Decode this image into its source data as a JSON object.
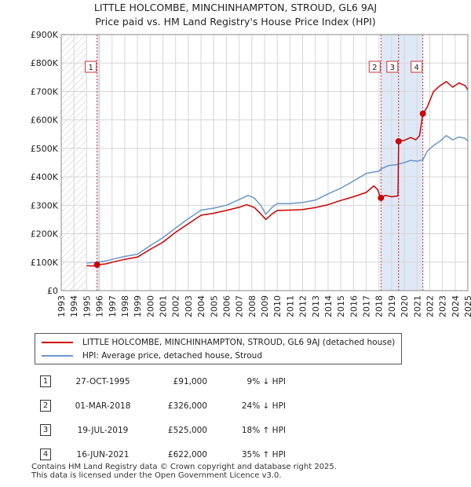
{
  "title_line1": "LITTLE HOLCOMBE, MINCHINHAMPTON, STROUD, GL6 9AJ",
  "title_line2": "Price paid vs. HM Land Registry's House Price Index (HPI)",
  "chart_data": {
    "type": "line",
    "title": "LITTLE HOLCOMBE, MINCHINHAMPTON, STROUD, GL6 9AJ — Price paid vs. HM Land Registry's House Price Index (HPI)",
    "xlabel": "",
    "ylabel": "",
    "xlim": [
      1993,
      2025
    ],
    "ylim": [
      0,
      900000
    ],
    "x_ticks": [
      "1993",
      "1994",
      "1995",
      "1996",
      "1997",
      "1998",
      "1999",
      "2000",
      "2001",
      "2002",
      "2003",
      "2004",
      "2005",
      "2006",
      "2007",
      "2008",
      "2009",
      "2010",
      "2011",
      "2012",
      "2013",
      "2014",
      "2015",
      "2016",
      "2017",
      "2018",
      "2019",
      "2020",
      "2021",
      "2022",
      "2023",
      "2024",
      "2025"
    ],
    "y_ticks": [
      {
        "value": 0,
        "label": "£0"
      },
      {
        "value": 100000,
        "label": "£100K"
      },
      {
        "value": 200000,
        "label": "£200K"
      },
      {
        "value": 300000,
        "label": "£300K"
      },
      {
        "value": 400000,
        "label": "£400K"
      },
      {
        "value": 500000,
        "label": "£500K"
      },
      {
        "value": 600000,
        "label": "£600K"
      },
      {
        "value": 700000,
        "label": "£700K"
      },
      {
        "value": 800000,
        "label": "£800K"
      },
      {
        "value": 900000,
        "label": "£900K"
      }
    ],
    "grid": true,
    "hatch_before_year": 1995.0,
    "colors": {
      "property": "#cc0000",
      "hpi": "#6a97c8",
      "marker_line": "#cc3333",
      "shade": "#dfe8f6"
    },
    "series": [
      {
        "name": "LITTLE HOLCOMBE, MINCHINHAMPTON, STROUD, GL6 9AJ (detached house)",
        "color": "#cc0000",
        "points": [
          [
            1995.0,
            88000
          ],
          [
            1995.5,
            86000
          ],
          [
            1995.82,
            91000
          ],
          [
            1996.5,
            94000
          ],
          [
            1997,
            100000
          ],
          [
            1998,
            110000
          ],
          [
            1999,
            118000
          ],
          [
            2000,
            145000
          ],
          [
            2001,
            170000
          ],
          [
            2002,
            205000
          ],
          [
            2003,
            235000
          ],
          [
            2004,
            265000
          ],
          [
            2005,
            272000
          ],
          [
            2006,
            282000
          ],
          [
            2007,
            293000
          ],
          [
            2007.6,
            302000
          ],
          [
            2008.2,
            292000
          ],
          [
            2008.7,
            270000
          ],
          [
            2009.1,
            250000
          ],
          [
            2009.6,
            270000
          ],
          [
            2010,
            282000
          ],
          [
            2011,
            283000
          ],
          [
            2012,
            285000
          ],
          [
            2013,
            292000
          ],
          [
            2014,
            302000
          ],
          [
            2015,
            317000
          ],
          [
            2016,
            330000
          ],
          [
            2017,
            345000
          ],
          [
            2017.6,
            368000
          ],
          [
            2017.9,
            355000
          ],
          [
            2018.1,
            330000
          ],
          [
            2018.16,
            326000
          ],
          [
            2018.5,
            335000
          ],
          [
            2019.0,
            330000
          ],
          [
            2019.5,
            333000
          ],
          [
            2019.55,
            525000
          ],
          [
            2020.0,
            528000
          ],
          [
            2020.5,
            538000
          ],
          [
            2020.9,
            530000
          ],
          [
            2021.2,
            545000
          ],
          [
            2021.46,
            622000
          ],
          [
            2021.8,
            645000
          ],
          [
            2022.3,
            700000
          ],
          [
            2022.8,
            720000
          ],
          [
            2023.3,
            735000
          ],
          [
            2023.8,
            715000
          ],
          [
            2024.3,
            730000
          ],
          [
            2024.8,
            720000
          ],
          [
            2025,
            705000
          ]
        ]
      },
      {
        "name": "HPI: Average price, detached house, Stroud",
        "color": "#6a97c8",
        "points": [
          [
            1995.0,
            97000
          ],
          [
            1995.82,
            100000
          ],
          [
            1996.5,
            104000
          ],
          [
            1997,
            110000
          ],
          [
            1998,
            120000
          ],
          [
            1999,
            128000
          ],
          [
            2000,
            158000
          ],
          [
            2001,
            186000
          ],
          [
            2002,
            220000
          ],
          [
            2003,
            253000
          ],
          [
            2004,
            283000
          ],
          [
            2005,
            290000
          ],
          [
            2006,
            300000
          ],
          [
            2007,
            320000
          ],
          [
            2007.7,
            335000
          ],
          [
            2008.2,
            325000
          ],
          [
            2008.7,
            300000
          ],
          [
            2009.1,
            268000
          ],
          [
            2009.6,
            293000
          ],
          [
            2010,
            306000
          ],
          [
            2011,
            306000
          ],
          [
            2012,
            310000
          ],
          [
            2013,
            318000
          ],
          [
            2014,
            340000
          ],
          [
            2015,
            360000
          ],
          [
            2016,
            385000
          ],
          [
            2017,
            412000
          ],
          [
            2018,
            420000
          ],
          [
            2018.16,
            428000
          ],
          [
            2018.8,
            440000
          ],
          [
            2019.3,
            442000
          ],
          [
            2019.55,
            445000
          ],
          [
            2020,
            450000
          ],
          [
            2020.5,
            458000
          ],
          [
            2021,
            455000
          ],
          [
            2021.46,
            460000
          ],
          [
            2021.8,
            490000
          ],
          [
            2022.3,
            510000
          ],
          [
            2022.8,
            525000
          ],
          [
            2023.3,
            545000
          ],
          [
            2023.8,
            530000
          ],
          [
            2024.3,
            540000
          ],
          [
            2024.8,
            535000
          ],
          [
            2025,
            525000
          ]
        ]
      }
    ],
    "sale_markers": [
      {
        "id": "1",
        "year": 1995.82,
        "value": 91000
      },
      {
        "id": "2",
        "year": 2018.16,
        "value": 326000
      },
      {
        "id": "3",
        "year": 2019.55,
        "value": 525000
      },
      {
        "id": "4",
        "year": 2021.46,
        "value": 622000
      }
    ]
  },
  "legend": {
    "property_label": "LITTLE HOLCOMBE, MINCHINHAMPTON, STROUD, GL6 9AJ (detached house)",
    "hpi_label": "HPI: Average price, detached house, Stroud"
  },
  "sales": [
    {
      "num": "1",
      "date": "27-OCT-1995",
      "price": "£91,000",
      "hpi": "9% ↓ HPI"
    },
    {
      "num": "2",
      "date": "01-MAR-2018",
      "price": "£326,000",
      "hpi": "24% ↓ HPI"
    },
    {
      "num": "3",
      "date": "19-JUL-2019",
      "price": "£525,000",
      "hpi": "18% ↑ HPI"
    },
    {
      "num": "4",
      "date": "16-JUN-2021",
      "price": "£622,000",
      "hpi": "35% ↑ HPI"
    }
  ],
  "footer": {
    "line1": "Contains HM Land Registry data © Crown copyright and database right 2025.",
    "line2": "This data is licensed under the Open Government Licence v3.0."
  }
}
